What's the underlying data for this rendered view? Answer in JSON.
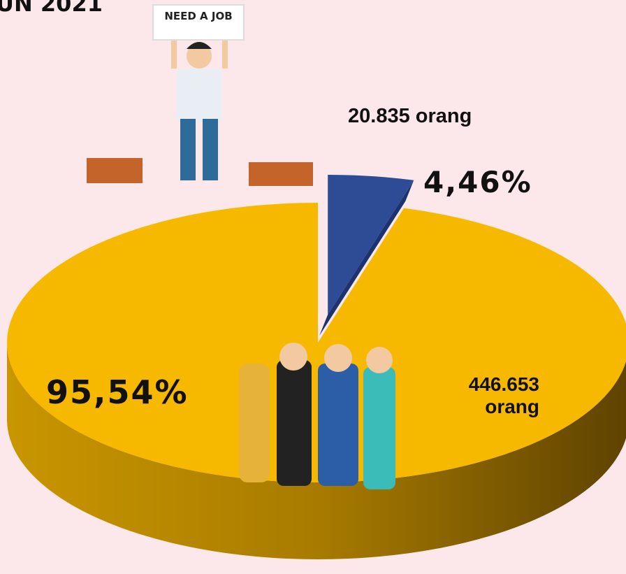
{
  "chart_data": {
    "type": "pie",
    "title": "UN 2021",
    "sign_text": "NEED A JOB",
    "values": [
      4.46,
      95.54
    ],
    "value_labels": [
      "4,46%",
      "95,54%"
    ],
    "counts": [
      20835,
      446653
    ],
    "count_labels": [
      "20.835 orang",
      "446.653 orang"
    ],
    "colors": [
      "#2e4b96",
      "#f7b900"
    ],
    "start_angle": -90,
    "exploded": [
      true,
      false
    ]
  }
}
